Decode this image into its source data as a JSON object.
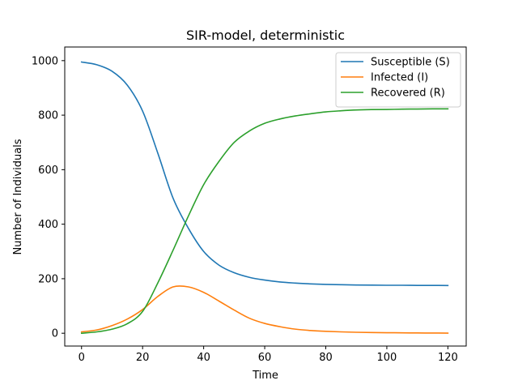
{
  "chart_data": {
    "type": "line",
    "title": "SIR-model, deterministic",
    "xlabel": "Time",
    "ylabel": "Number of Individuals",
    "xlim": [
      -5.5,
      126
    ],
    "ylim": [
      -47,
      1050
    ],
    "x_ticks": [
      0,
      20,
      40,
      60,
      80,
      100,
      120
    ],
    "x_tick_labels": [
      "0",
      "20",
      "40",
      "60",
      "80",
      "100",
      "120"
    ],
    "y_ticks": [
      0,
      200,
      400,
      600,
      800,
      1000
    ],
    "y_tick_labels": [
      "0",
      "200",
      "400",
      "600",
      "800",
      "1000"
    ],
    "grid": false,
    "legend_position": "top-right",
    "x": [
      0,
      5,
      10,
      15,
      20,
      25,
      30,
      35,
      40,
      45,
      50,
      55,
      60,
      65,
      70,
      75,
      80,
      85,
      90,
      95,
      100,
      105,
      110,
      115,
      120
    ],
    "series": [
      {
        "name": "Susceptible (S)",
        "color": "#1f77b4",
        "values": [
          995,
          985,
          961,
          910,
          815,
          660,
          495,
          385,
          300,
          250,
          222,
          205,
          195,
          188,
          184,
          181,
          179,
          178,
          177,
          176.5,
          176,
          176,
          175.5,
          175.5,
          175
        ]
      },
      {
        "name": "Infected (I)",
        "color": "#ff7f0e",
        "values": [
          5,
          12,
          28,
          52,
          87,
          135,
          170,
          170,
          150,
          118,
          85,
          55,
          36,
          24,
          15,
          10,
          7,
          5,
          3.5,
          2.5,
          2,
          1.5,
          1,
          0.8,
          0.5
        ]
      },
      {
        "name": "Recovered (R)",
        "color": "#2ca02c",
        "values": [
          0,
          5,
          15,
          35,
          80,
          185,
          305,
          430,
          545,
          630,
          700,
          742,
          770,
          786,
          797,
          805,
          812,
          816,
          819,
          820.5,
          821,
          822,
          822.5,
          823,
          823
        ]
      }
    ]
  }
}
